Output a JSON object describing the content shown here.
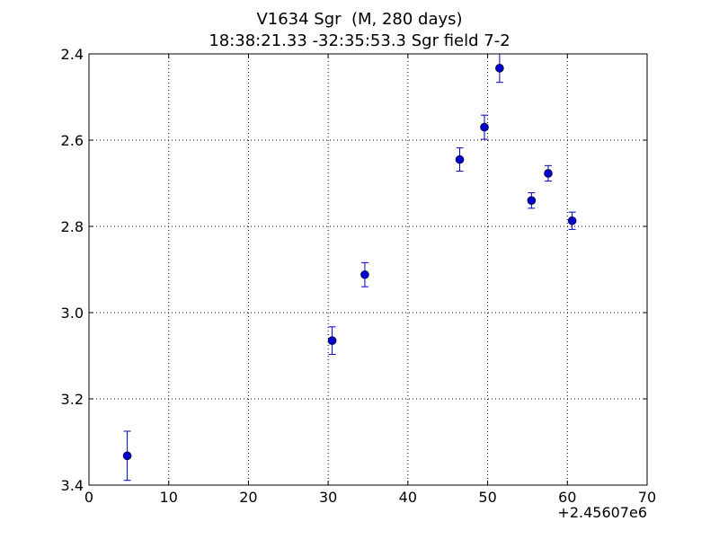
{
  "chart_data": {
    "type": "scatter",
    "title_line1": "V1634 Sgr  (M, 280 days)",
    "title_line2": "18:38:21.33 -32:35:53.3 Sgr field 7-2",
    "xlabel": "",
    "ylabel": "",
    "x_offset_label": "+2.45607e6",
    "xlim": [
      0,
      70
    ],
    "ylim": [
      3.4,
      2.4
    ],
    "y_inverted": true,
    "grid": true,
    "x_ticks": [
      0,
      10,
      20,
      30,
      40,
      50,
      60,
      70
    ],
    "x_tick_labels": [
      "0",
      "10",
      "20",
      "30",
      "40",
      "50",
      "60",
      "70"
    ],
    "y_ticks": [
      2.4,
      2.6,
      2.8,
      3.0,
      3.2,
      3.4
    ],
    "y_tick_labels": [
      "2.4",
      "2.6",
      "2.8",
      "3.0",
      "3.2",
      "3.4"
    ],
    "color": "#0000cc",
    "points": [
      {
        "x": 4.8,
        "y": 3.332,
        "err": 0.057
      },
      {
        "x": 30.5,
        "y": 3.065,
        "err": 0.032
      },
      {
        "x": 34.6,
        "y": 2.912,
        "err": 0.028
      },
      {
        "x": 46.5,
        "y": 2.645,
        "err": 0.027
      },
      {
        "x": 49.6,
        "y": 2.57,
        "err": 0.028
      },
      {
        "x": 51.5,
        "y": 2.433,
        "err": 0.033
      },
      {
        "x": 55.5,
        "y": 2.74,
        "err": 0.018
      },
      {
        "x": 57.6,
        "y": 2.677,
        "err": 0.018
      },
      {
        "x": 60.6,
        "y": 2.787,
        "err": 0.02
      }
    ]
  }
}
